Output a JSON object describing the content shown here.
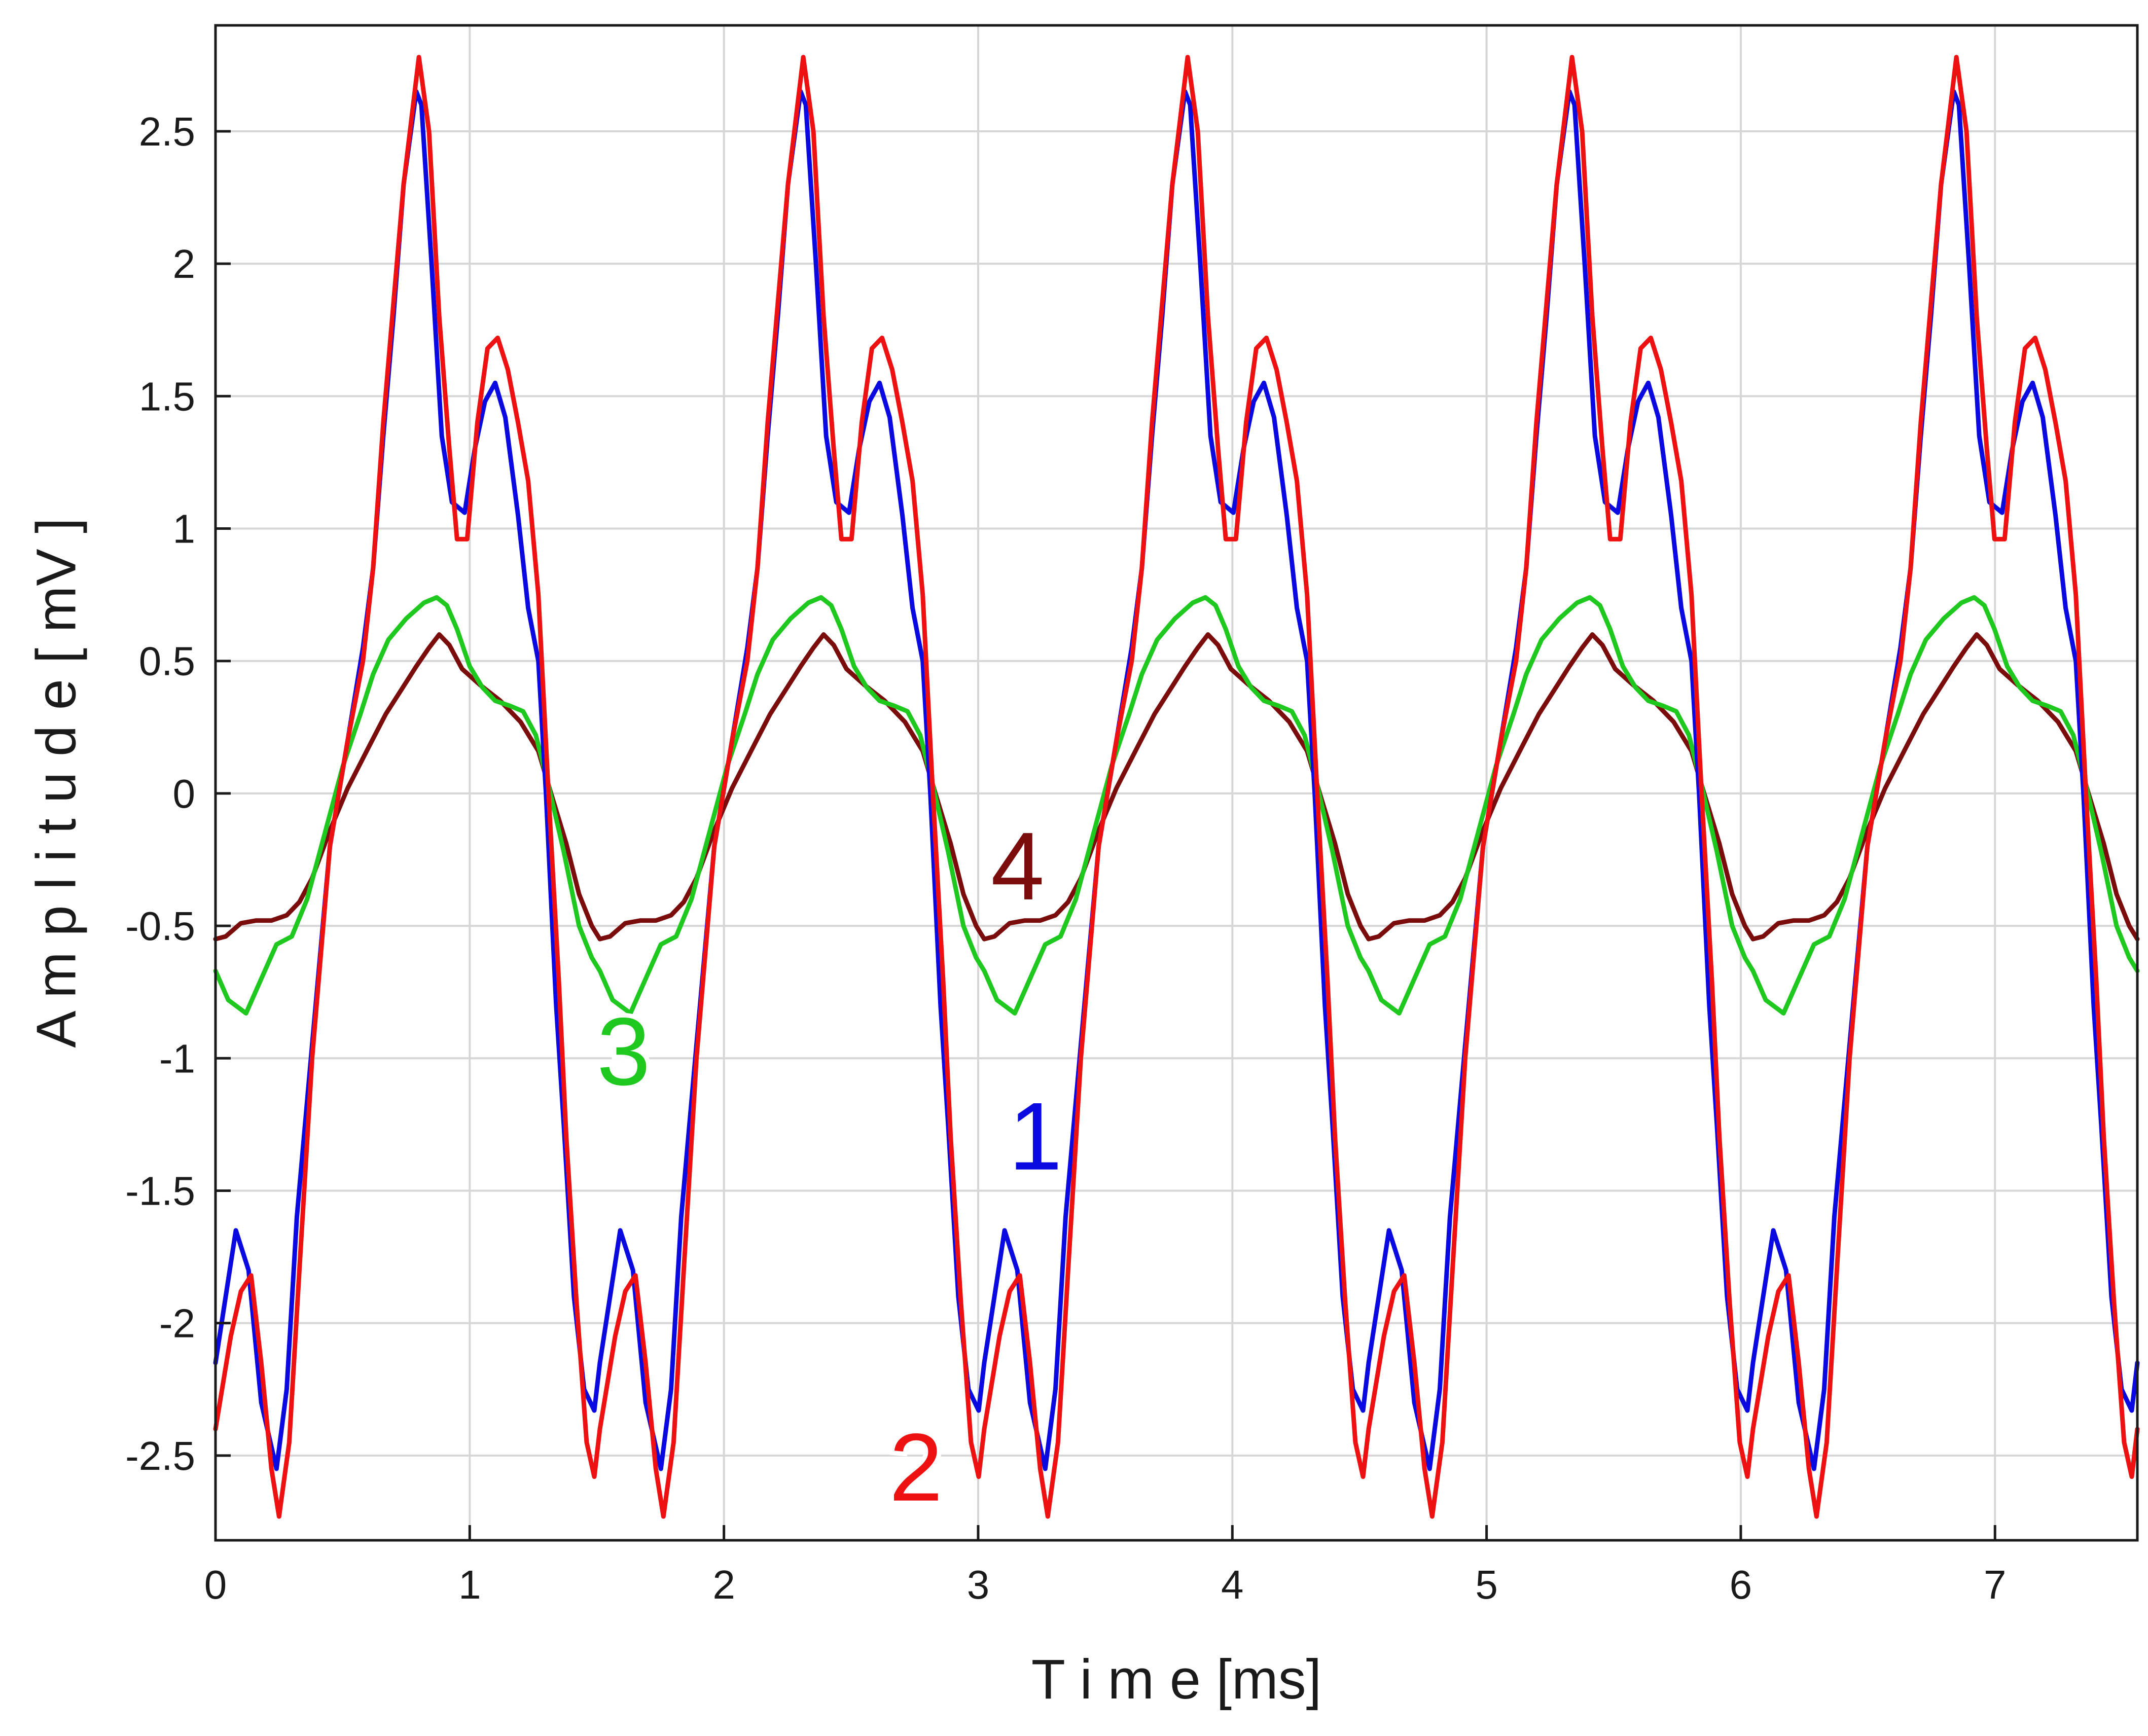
{
  "chart_data": {
    "type": "line",
    "title": "",
    "xlabel": "T i m e [ms]",
    "ylabel": "A m p l i t u d e [ mV ]",
    "xlim": [
      0,
      7.56
    ],
    "ylim": [
      -2.82,
      2.9
    ],
    "grid": true,
    "period_ms": 1.512,
    "x_ticks": [
      {
        "value": 0,
        "label": "0"
      },
      {
        "value": 1,
        "label": "1"
      },
      {
        "value": 2,
        "label": "2"
      },
      {
        "value": 3,
        "label": "3"
      },
      {
        "value": 4,
        "label": "4"
      },
      {
        "value": 5,
        "label": "5"
      },
      {
        "value": 6,
        "label": "6"
      },
      {
        "value": 7,
        "label": "7"
      }
    ],
    "y_ticks": [
      {
        "value": 2.5,
        "label": "2.5"
      },
      {
        "value": 2,
        "label": "2"
      },
      {
        "value": 1.5,
        "label": "1.5"
      },
      {
        "value": 1,
        "label": "1"
      },
      {
        "value": 0.5,
        "label": "0.5"
      },
      {
        "value": 0,
        "label": "0"
      },
      {
        "value": -0.5,
        "label": "-0.5"
      },
      {
        "value": -1,
        "label": "-1"
      },
      {
        "value": -1.5,
        "label": "-1.5"
      },
      {
        "value": -2,
        "label": "-2"
      },
      {
        "value": -2.5,
        "label": "-2.5"
      }
    ],
    "series": [
      {
        "label": "1",
        "color": "#0a0ae0",
        "label_pos": {
          "x": 3.12,
          "y": -1.42
        },
        "cycle": [
          [
            0,
            -2.15
          ],
          [
            0.08,
            -1.65
          ],
          [
            0.13,
            -1.8
          ],
          [
            0.18,
            -2.3
          ],
          [
            0.24,
            -2.55
          ],
          [
            0.28,
            -2.25
          ],
          [
            0.32,
            -1.6
          ],
          [
            0.38,
            -0.95
          ],
          [
            0.45,
            -0.2
          ],
          [
            0.52,
            0.2
          ],
          [
            0.58,
            0.55
          ],
          [
            0.62,
            0.85
          ],
          [
            0.66,
            1.35
          ],
          [
            0.7,
            1.8
          ],
          [
            0.74,
            2.3
          ],
          [
            0.79,
            2.65
          ],
          [
            0.81,
            2.6
          ],
          [
            0.85,
            2.0
          ],
          [
            0.89,
            1.35
          ],
          [
            0.93,
            1.1
          ],
          [
            0.98,
            1.06
          ],
          [
            1.02,
            1.3
          ],
          [
            1.06,
            1.48
          ],
          [
            1.1,
            1.55
          ],
          [
            1.14,
            1.42
          ],
          [
            1.19,
            1.05
          ],
          [
            1.23,
            0.7
          ],
          [
            1.27,
            0.5
          ],
          [
            1.3,
            0.0
          ],
          [
            1.34,
            -0.8
          ],
          [
            1.37,
            -1.25
          ],
          [
            1.41,
            -1.9
          ],
          [
            1.45,
            -2.25
          ],
          [
            1.49,
            -2.33
          ],
          [
            1.512,
            -2.15
          ]
        ]
      },
      {
        "label": "2",
        "color": "#ee1111",
        "label_pos": {
          "x": 2.65,
          "y": -2.67
        },
        "cycle": [
          [
            0,
            -2.4
          ],
          [
            0.06,
            -2.05
          ],
          [
            0.1,
            -1.88
          ],
          [
            0.14,
            -1.82
          ],
          [
            0.18,
            -2.15
          ],
          [
            0.22,
            -2.55
          ],
          [
            0.25,
            -2.73
          ],
          [
            0.29,
            -2.45
          ],
          [
            0.33,
            -1.8
          ],
          [
            0.38,
            -1.0
          ],
          [
            0.45,
            -0.2
          ],
          [
            0.52,
            0.2
          ],
          [
            0.58,
            0.5
          ],
          [
            0.62,
            0.85
          ],
          [
            0.66,
            1.4
          ],
          [
            0.7,
            1.85
          ],
          [
            0.74,
            2.3
          ],
          [
            0.8,
            2.78
          ],
          [
            0.84,
            2.5
          ],
          [
            0.88,
            1.8
          ],
          [
            0.92,
            1.3
          ],
          [
            0.95,
            0.96
          ],
          [
            0.99,
            0.96
          ],
          [
            1.03,
            1.4
          ],
          [
            1.07,
            1.68
          ],
          [
            1.11,
            1.72
          ],
          [
            1.15,
            1.6
          ],
          [
            1.19,
            1.4
          ],
          [
            1.23,
            1.18
          ],
          [
            1.27,
            0.75
          ],
          [
            1.31,
            0.0
          ],
          [
            1.35,
            -0.7
          ],
          [
            1.38,
            -1.3
          ],
          [
            1.42,
            -1.92
          ],
          [
            1.46,
            -2.45
          ],
          [
            1.49,
            -2.58
          ],
          [
            1.512,
            -2.4
          ]
        ]
      },
      {
        "label": "3",
        "color": "#1ec81e",
        "label_pos": {
          "x": 1.5,
          "y": -1.1
        },
        "cycle": [
          [
            0,
            -0.67
          ],
          [
            0.05,
            -0.78
          ],
          [
            0.12,
            -0.83
          ],
          [
            0.18,
            -0.7
          ],
          [
            0.24,
            -0.57
          ],
          [
            0.3,
            -0.54
          ],
          [
            0.36,
            -0.4
          ],
          [
            0.43,
            -0.15
          ],
          [
            0.5,
            0.1
          ],
          [
            0.57,
            0.3
          ],
          [
            0.62,
            0.45
          ],
          [
            0.68,
            0.58
          ],
          [
            0.75,
            0.66
          ],
          [
            0.82,
            0.72
          ],
          [
            0.87,
            0.74
          ],
          [
            0.91,
            0.71
          ],
          [
            0.95,
            0.62
          ],
          [
            1.0,
            0.48
          ],
          [
            1.05,
            0.4
          ],
          [
            1.1,
            0.35
          ],
          [
            1.16,
            0.33
          ],
          [
            1.21,
            0.31
          ],
          [
            1.26,
            0.22
          ],
          [
            1.31,
            0.03
          ],
          [
            1.37,
            -0.22
          ],
          [
            1.43,
            -0.5
          ],
          [
            1.48,
            -0.62
          ],
          [
            1.512,
            -0.67
          ]
        ]
      },
      {
        "label": "4",
        "color": "#7a0c0c",
        "label_pos": {
          "x": 3.05,
          "y": -0.4
        },
        "cycle": [
          [
            0,
            -0.55
          ],
          [
            0.04,
            -0.54
          ],
          [
            0.1,
            -0.49
          ],
          [
            0.16,
            -0.48
          ],
          [
            0.22,
            -0.48
          ],
          [
            0.28,
            -0.46
          ],
          [
            0.33,
            -0.41
          ],
          [
            0.38,
            -0.32
          ],
          [
            0.45,
            -0.14
          ],
          [
            0.52,
            0.02
          ],
          [
            0.6,
            0.17
          ],
          [
            0.67,
            0.3
          ],
          [
            0.73,
            0.39
          ],
          [
            0.79,
            0.48
          ],
          [
            0.84,
            0.55
          ],
          [
            0.88,
            0.6
          ],
          [
            0.92,
            0.56
          ],
          [
            0.97,
            0.47
          ],
          [
            1.04,
            0.41
          ],
          [
            1.12,
            0.35
          ],
          [
            1.2,
            0.27
          ],
          [
            1.27,
            0.16
          ],
          [
            1.32,
            0.0
          ],
          [
            1.38,
            -0.19
          ],
          [
            1.43,
            -0.38
          ],
          [
            1.48,
            -0.5
          ],
          [
            1.512,
            -0.55
          ]
        ]
      }
    ]
  }
}
